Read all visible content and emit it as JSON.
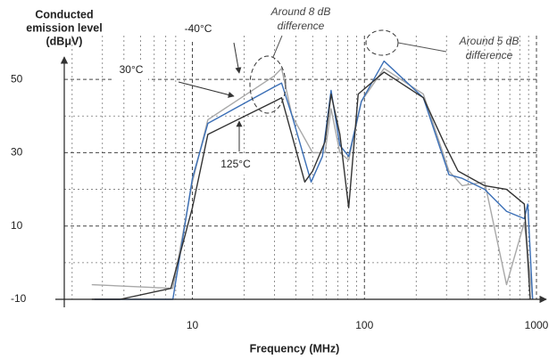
{
  "chart_data": {
    "type": "line",
    "ylabel": [
      "Conducted",
      "emission level",
      "(dBμV)"
    ],
    "xlabel": "Frequency (MHz)",
    "annotations": [
      {
        "text": [
          "Around 8 dB",
          "difference"
        ]
      },
      {
        "text": [
          "Around 5 dB",
          "difference"
        ]
      }
    ],
    "log_x": true,
    "xlim": [
      1.8,
      1000
    ],
    "ylim": [
      -10,
      60
    ],
    "xticks": [
      10,
      100,
      1000
    ],
    "yticks": [
      -10,
      10,
      30,
      50
    ],
    "xminor": [
      2,
      3,
      4,
      5,
      6,
      7,
      8,
      9,
      20,
      30,
      40,
      50,
      60,
      70,
      80,
      90,
      200,
      300,
      400,
      500,
      600,
      700,
      800,
      900
    ],
    "yminor": [
      0,
      20,
      40
    ],
    "grid": true,
    "series": [
      {
        "name": "-40°C",
        "color": "#a8a8a8",
        "x": [
          2.6,
          7.7,
          10,
          12.3,
          30,
          33,
          38,
          50,
          59,
          64,
          72,
          81,
          96,
          130,
          220,
          310,
          370,
          500,
          670,
          850,
          950
        ],
        "values": [
          -6,
          -7,
          22,
          39,
          51,
          53,
          40,
          30,
          30,
          42,
          30,
          28,
          44,
          53,
          46,
          25,
          21,
          22,
          -6,
          11,
          -10
        ]
      },
      {
        "name": "30°C",
        "color": "#3b6fb6",
        "x": [
          2.7,
          7.7,
          10,
          12.3,
          30,
          33,
          38,
          49,
          57,
          64,
          72,
          81,
          96,
          130,
          220,
          310,
          370,
          500,
          670,
          850,
          890,
          950
        ],
        "values": [
          -10,
          -10,
          23,
          38,
          48,
          49,
          40,
          22,
          29,
          47,
          32,
          29,
          44,
          55,
          45,
          24,
          23,
          20,
          14,
          12,
          16,
          -10
        ]
      },
      {
        "name": "125°C",
        "color": "#333333",
        "x": [
          2.6,
          3.8,
          7.5,
          10,
          12.3,
          30,
          33,
          45,
          50,
          59,
          64,
          72,
          81,
          92,
          130,
          220,
          295,
          350,
          500,
          670,
          850,
          920
        ],
        "values": [
          -10,
          -10,
          -7,
          15,
          35,
          44,
          45,
          22,
          25,
          33,
          46,
          35,
          15,
          46,
          52,
          45,
          32,
          25,
          21,
          20,
          16,
          -10
        ]
      }
    ]
  }
}
